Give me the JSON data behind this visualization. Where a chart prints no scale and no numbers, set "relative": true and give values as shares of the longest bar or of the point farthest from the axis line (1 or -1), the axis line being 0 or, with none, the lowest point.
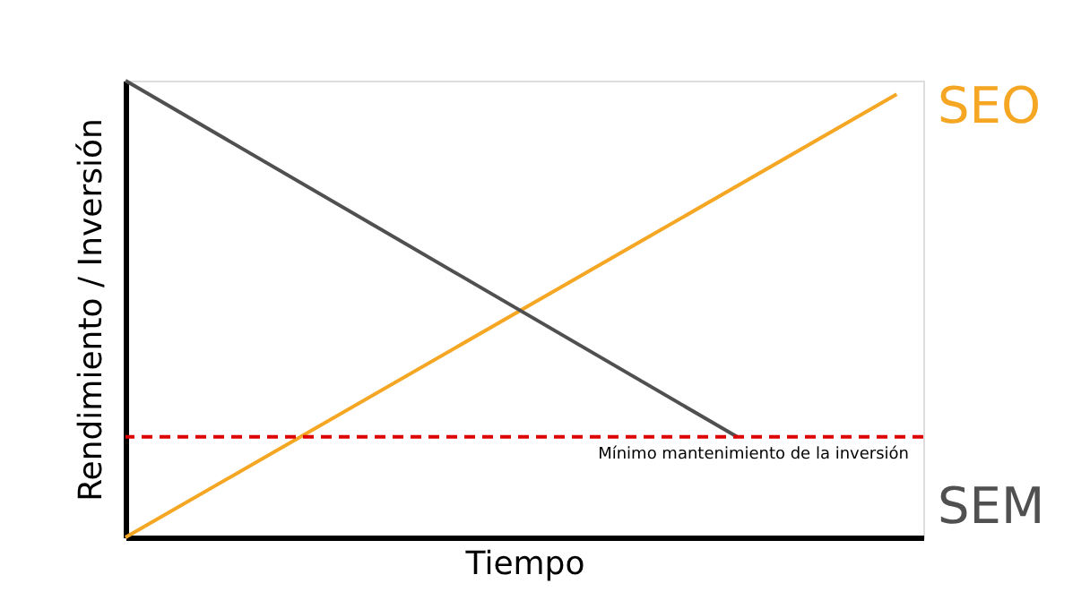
{
  "chart_data": {
    "type": "line",
    "relative": true,
    "xlabel": "Tiempo",
    "ylabel": "Rendimiento / Inversión",
    "categories": [
      null,
      null,
      null,
      null,
      null,
      null,
      null,
      null,
      null,
      null,
      null,
      null,
      null,
      null,
      null,
      null,
      null,
      null,
      null,
      null,
      null,
      null,
      null,
      null,
      null,
      null,
      null,
      null,
      null,
      null,
      null
    ],
    "series": [
      {
        "name": "SEO",
        "color": "#f5a623",
        "values": [
          0,
          null,
          null,
          null,
          null,
          null,
          null,
          null,
          null,
          null,
          null,
          null,
          null,
          null,
          null,
          null,
          null,
          null,
          null,
          null,
          null,
          null,
          null,
          null,
          null,
          null,
          null,
          null,
          null,
          0.97,
          null
        ]
      },
      {
        "name": "SEM",
        "color": "#505050",
        "values": [
          1,
          null,
          null,
          null,
          null,
          null,
          null,
          null,
          null,
          null,
          null,
          null,
          null,
          null,
          null,
          null,
          null,
          null,
          null,
          null,
          null,
          null,
          null,
          0.22,
          null,
          null,
          null,
          null,
          null,
          null,
          null
        ]
      }
    ],
    "ref_lines": [
      {
        "axis": "y",
        "value": 0.22,
        "label": "Mínimo mantenimiento de la inversión",
        "color": "#dd0000",
        "line_style": "dashed"
      }
    ],
    "marker": "none",
    "line_style": "solid",
    "grid": false,
    "legend": false,
    "tick_labels": false
  }
}
